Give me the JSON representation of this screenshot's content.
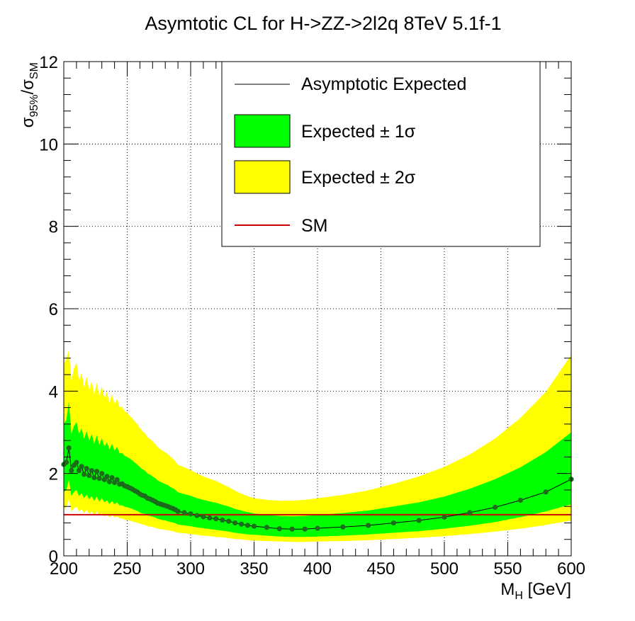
{
  "chart_data": {
    "type": "area",
    "title": "Asymtotic CL for H->ZZ->2l2q  8TeV  5.1f-1",
    "xlabel_main": "M",
    "xlabel_sub": "H",
    "xlabel_unit": " [GeV]",
    "ylabel_sigma1": "σ",
    "ylabel_sub1": "95%",
    "ylabel_slash": "/",
    "ylabel_sigma2": "σ",
    "ylabel_sub2": "SM",
    "xlim": [
      200,
      600
    ],
    "ylim": [
      0,
      12
    ],
    "x_ticks": [
      200,
      250,
      300,
      350,
      400,
      450,
      500,
      550,
      600
    ],
    "y_ticks": [
      0,
      2,
      4,
      6,
      8,
      10,
      12
    ],
    "grid": true,
    "legend_position": "top-right",
    "legend": {
      "expected": "Asymptotic Expected",
      "one_sigma": "Expected ± 1σ",
      "two_sigma": "Expected ± 2σ",
      "sm": "SM"
    },
    "colors": {
      "one_sigma": "#00ff00",
      "two_sigma": "#ffff00",
      "expected_line": "#000000",
      "marker": "#1a6b1a",
      "sm": "#cc0000"
    },
    "sm_value": 1.0,
    "x": [
      200,
      202,
      204,
      206,
      208,
      210,
      212,
      214,
      216,
      218,
      220,
      222,
      224,
      226,
      228,
      230,
      232,
      234,
      236,
      238,
      240,
      242,
      244,
      246,
      248,
      250,
      252,
      254,
      256,
      258,
      260,
      262,
      264,
      266,
      268,
      270,
      272,
      274,
      276,
      278,
      280,
      282,
      284,
      286,
      288,
      290,
      295,
      300,
      305,
      310,
      315,
      320,
      325,
      330,
      335,
      340,
      345,
      350,
      360,
      370,
      380,
      390,
      400,
      420,
      440,
      460,
      480,
      500,
      520,
      540,
      560,
      580,
      600
    ],
    "expected": [
      2.22,
      2.27,
      2.62,
      2.07,
      2.2,
      2.27,
      2.07,
      2.17,
      1.98,
      2.12,
      1.95,
      2.07,
      1.9,
      2.05,
      1.88,
      2.0,
      1.85,
      1.93,
      1.8,
      1.9,
      1.78,
      1.85,
      1.74,
      1.75,
      1.7,
      1.68,
      1.65,
      1.62,
      1.58,
      1.55,
      1.5,
      1.47,
      1.45,
      1.4,
      1.38,
      1.35,
      1.32,
      1.28,
      1.26,
      1.24,
      1.22,
      1.2,
      1.17,
      1.15,
      1.12,
      1.08,
      1.05,
      1.02,
      0.98,
      0.95,
      0.92,
      0.9,
      0.87,
      0.84,
      0.8,
      0.77,
      0.74,
      0.72,
      0.69,
      0.66,
      0.65,
      0.65,
      0.67,
      0.7,
      0.74,
      0.8,
      0.86,
      0.94,
      1.05,
      1.18,
      1.35,
      1.55,
      1.86
    ],
    "one_sigma_low": [
      1.55,
      1.6,
      1.85,
      1.45,
      1.55,
      1.6,
      1.45,
      1.52,
      1.4,
      1.49,
      1.37,
      1.45,
      1.33,
      1.44,
      1.32,
      1.4,
      1.3,
      1.35,
      1.26,
      1.33,
      1.25,
      1.3,
      1.22,
      1.23,
      1.19,
      1.18,
      1.16,
      1.14,
      1.11,
      1.09,
      1.05,
      1.03,
      1.02,
      0.98,
      0.97,
      0.95,
      0.93,
      0.9,
      0.88,
      0.87,
      0.86,
      0.84,
      0.82,
      0.81,
      0.79,
      0.76,
      0.74,
      0.72,
      0.69,
      0.67,
      0.65,
      0.63,
      0.61,
      0.59,
      0.56,
      0.54,
      0.52,
      0.51,
      0.49,
      0.47,
      0.46,
      0.46,
      0.47,
      0.49,
      0.52,
      0.56,
      0.6,
      0.66,
      0.73,
      0.82,
      0.94,
      1.08,
      1.25
    ],
    "one_sigma_high": [
      3.2,
      3.3,
      3.75,
      2.96,
      3.15,
      3.25,
      2.96,
      3.1,
      2.84,
      3.03,
      2.79,
      2.96,
      2.72,
      2.93,
      2.69,
      2.86,
      2.65,
      2.76,
      2.58,
      2.72,
      2.55,
      2.65,
      2.49,
      2.5,
      2.43,
      2.4,
      2.36,
      2.32,
      2.26,
      2.22,
      2.15,
      2.1,
      2.07,
      2.0,
      1.97,
      1.93,
      1.89,
      1.83,
      1.8,
      1.77,
      1.74,
      1.72,
      1.67,
      1.64,
      1.6,
      1.54,
      1.5,
      1.46,
      1.4,
      1.36,
      1.32,
      1.29,
      1.24,
      1.2,
      1.14,
      1.1,
      1.06,
      1.03,
      0.99,
      0.97,
      0.96,
      0.97,
      0.99,
      1.04,
      1.1,
      1.2,
      1.3,
      1.44,
      1.63,
      1.86,
      2.15,
      2.52,
      3.0
    ],
    "two_sigma_low": [
      1.15,
      1.18,
      1.38,
      1.08,
      1.15,
      1.19,
      1.08,
      1.13,
      1.04,
      1.11,
      1.02,
      1.08,
      0.99,
      1.07,
      0.98,
      1.04,
      0.96,
      1.0,
      0.94,
      0.99,
      0.93,
      0.96,
      0.91,
      0.91,
      0.88,
      0.87,
      0.86,
      0.84,
      0.82,
      0.8,
      0.78,
      0.76,
      0.75,
      0.72,
      0.71,
      0.7,
      0.68,
      0.66,
      0.65,
      0.64,
      0.63,
      0.62,
      0.61,
      0.6,
      0.58,
      0.56,
      0.55,
      0.53,
      0.51,
      0.49,
      0.48,
      0.46,
      0.45,
      0.43,
      0.41,
      0.4,
      0.38,
      0.37,
      0.36,
      0.35,
      0.34,
      0.34,
      0.35,
      0.36,
      0.38,
      0.41,
      0.44,
      0.48,
      0.53,
      0.59,
      0.66,
      0.75,
      0.86
    ],
    "two_sigma_high": [
      4.65,
      4.8,
      5.0,
      4.25,
      4.55,
      4.7,
      4.25,
      4.45,
      4.1,
      4.35,
      4.02,
      4.25,
      3.92,
      4.2,
      3.88,
      4.12,
      3.82,
      3.98,
      3.72,
      3.92,
      3.68,
      3.82,
      3.6,
      3.62,
      3.51,
      3.47,
      3.4,
      3.34,
      3.26,
      3.2,
      3.1,
      3.03,
      2.98,
      2.88,
      2.84,
      2.78,
      2.72,
      2.64,
      2.59,
      2.55,
      2.51,
      2.47,
      2.41,
      2.36,
      2.3,
      2.21,
      2.15,
      2.08,
      2.0,
      1.93,
      1.87,
      1.82,
      1.74,
      1.67,
      1.58,
      1.51,
      1.45,
      1.4,
      1.36,
      1.34,
      1.34,
      1.36,
      1.4,
      1.48,
      1.59,
      1.75,
      1.93,
      2.16,
      2.46,
      2.85,
      3.35,
      3.98,
      4.88
    ]
  }
}
